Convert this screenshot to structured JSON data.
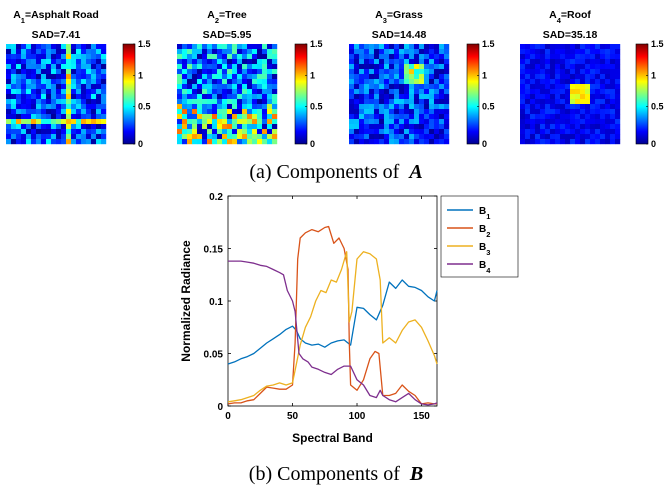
{
  "panel_a": {
    "caption_prefix": "(a) Components of",
    "caption_symbol": "A",
    "maps": [
      {
        "name": "A",
        "sub": "1",
        "label": "=Asphalt Road",
        "sad": "SAD=7.41",
        "scheme": "road"
      },
      {
        "name": "A",
        "sub": "2",
        "label": "=Tree",
        "sad": "SAD=5.95",
        "scheme": "tree"
      },
      {
        "name": "A",
        "sub": "3",
        "label": "=Grass",
        "sad": "SAD=14.48",
        "scheme": "grass"
      },
      {
        "name": "A",
        "sub": "4",
        "label": "=Roof",
        "sad": "SAD=35.18",
        "scheme": "roof"
      }
    ],
    "colorbar_ticks": [
      "1.5",
      "1",
      "0.5",
      "0"
    ]
  },
  "panel_b": {
    "caption_prefix": "(b) Components of",
    "caption_symbol": "B"
  },
  "chart_data": {
    "type": "line",
    "title": "",
    "xlabel": "Spectral Band",
    "ylabel": "Normalized Radiance",
    "xlim": [
      0,
      162
    ],
    "ylim": [
      0,
      0.2
    ],
    "xticks": [
      0,
      50,
      100,
      150
    ],
    "yticks": [
      0,
      0.05,
      0.1,
      0.15,
      0.2
    ],
    "ytick_labels": [
      "0",
      "0.05",
      "0.1",
      "0.15",
      "0.2"
    ],
    "legend_position": "outside-right",
    "series": [
      {
        "name": "B",
        "sub": "1",
        "color": "#0072BD",
        "x": [
          0,
          5,
          10,
          15,
          20,
          25,
          30,
          35,
          40,
          45,
          50,
          53,
          56,
          60,
          65,
          70,
          75,
          80,
          85,
          90,
          95,
          100,
          105,
          110,
          115,
          120,
          125,
          130,
          135,
          140,
          145,
          150,
          155,
          160,
          162
        ],
        "y": [
          0.04,
          0.042,
          0.045,
          0.047,
          0.05,
          0.055,
          0.06,
          0.064,
          0.068,
          0.073,
          0.076,
          0.072,
          0.064,
          0.06,
          0.058,
          0.059,
          0.056,
          0.06,
          0.062,
          0.063,
          0.058,
          0.094,
          0.093,
          0.087,
          0.082,
          0.096,
          0.118,
          0.112,
          0.12,
          0.114,
          0.113,
          0.11,
          0.104,
          0.1,
          0.11
        ]
      },
      {
        "name": "B",
        "sub": "2",
        "color": "#D95319",
        "x": [
          0,
          5,
          10,
          15,
          20,
          25,
          30,
          35,
          40,
          45,
          50,
          52,
          54,
          56,
          60,
          65,
          70,
          75,
          78,
          82,
          86,
          90,
          93,
          94,
          95,
          100,
          105,
          110,
          114,
          117,
          120,
          125,
          130,
          135,
          140,
          145,
          150,
          155,
          160,
          162
        ],
        "y": [
          0.002,
          0.003,
          0.003,
          0.005,
          0.006,
          0.012,
          0.018,
          0.017,
          0.016,
          0.016,
          0.02,
          0.06,
          0.14,
          0.16,
          0.165,
          0.168,
          0.166,
          0.17,
          0.171,
          0.155,
          0.16,
          0.15,
          0.13,
          0.06,
          0.02,
          0.015,
          0.025,
          0.045,
          0.052,
          0.05,
          0.01,
          0.01,
          0.012,
          0.02,
          0.014,
          0.01,
          0.002,
          0.003,
          0.002,
          0.002
        ]
      },
      {
        "name": "B",
        "sub": "3",
        "color": "#EDB120",
        "x": [
          0,
          5,
          10,
          15,
          20,
          25,
          30,
          35,
          40,
          45,
          50,
          53,
          56,
          60,
          64,
          68,
          72,
          76,
          80,
          84,
          88,
          92,
          94,
          96,
          100,
          105,
          110,
          115,
          118,
          120,
          125,
          130,
          135,
          140,
          145,
          150,
          155,
          160,
          162
        ],
        "y": [
          0.004,
          0.005,
          0.006,
          0.008,
          0.01,
          0.015,
          0.019,
          0.02,
          0.022,
          0.02,
          0.022,
          0.04,
          0.058,
          0.075,
          0.085,
          0.1,
          0.11,
          0.108,
          0.12,
          0.118,
          0.13,
          0.147,
          0.08,
          0.09,
          0.14,
          0.147,
          0.145,
          0.14,
          0.12,
          0.06,
          0.065,
          0.06,
          0.072,
          0.08,
          0.082,
          0.075,
          0.062,
          0.048,
          0.04
        ]
      },
      {
        "name": "B",
        "sub": "4",
        "color": "#7E2F8E",
        "x": [
          0,
          5,
          10,
          15,
          20,
          25,
          30,
          35,
          40,
          43,
          46,
          50,
          52,
          55,
          58,
          62,
          65,
          70,
          75,
          80,
          85,
          90,
          95,
          100,
          105,
          110,
          115,
          118,
          120,
          125,
          130,
          135,
          140,
          145,
          150,
          155,
          160,
          162
        ],
        "y": [
          0.138,
          0.138,
          0.138,
          0.137,
          0.136,
          0.134,
          0.133,
          0.13,
          0.127,
          0.125,
          0.11,
          0.1,
          0.09,
          0.05,
          0.045,
          0.042,
          0.037,
          0.035,
          0.032,
          0.03,
          0.035,
          0.038,
          0.038,
          0.025,
          0.02,
          0.01,
          0.008,
          0.015,
          0.01,
          0.006,
          0.004,
          0.008,
          0.012,
          0.006,
          0.002,
          0.001,
          0.002,
          0.003
        ]
      }
    ]
  }
}
